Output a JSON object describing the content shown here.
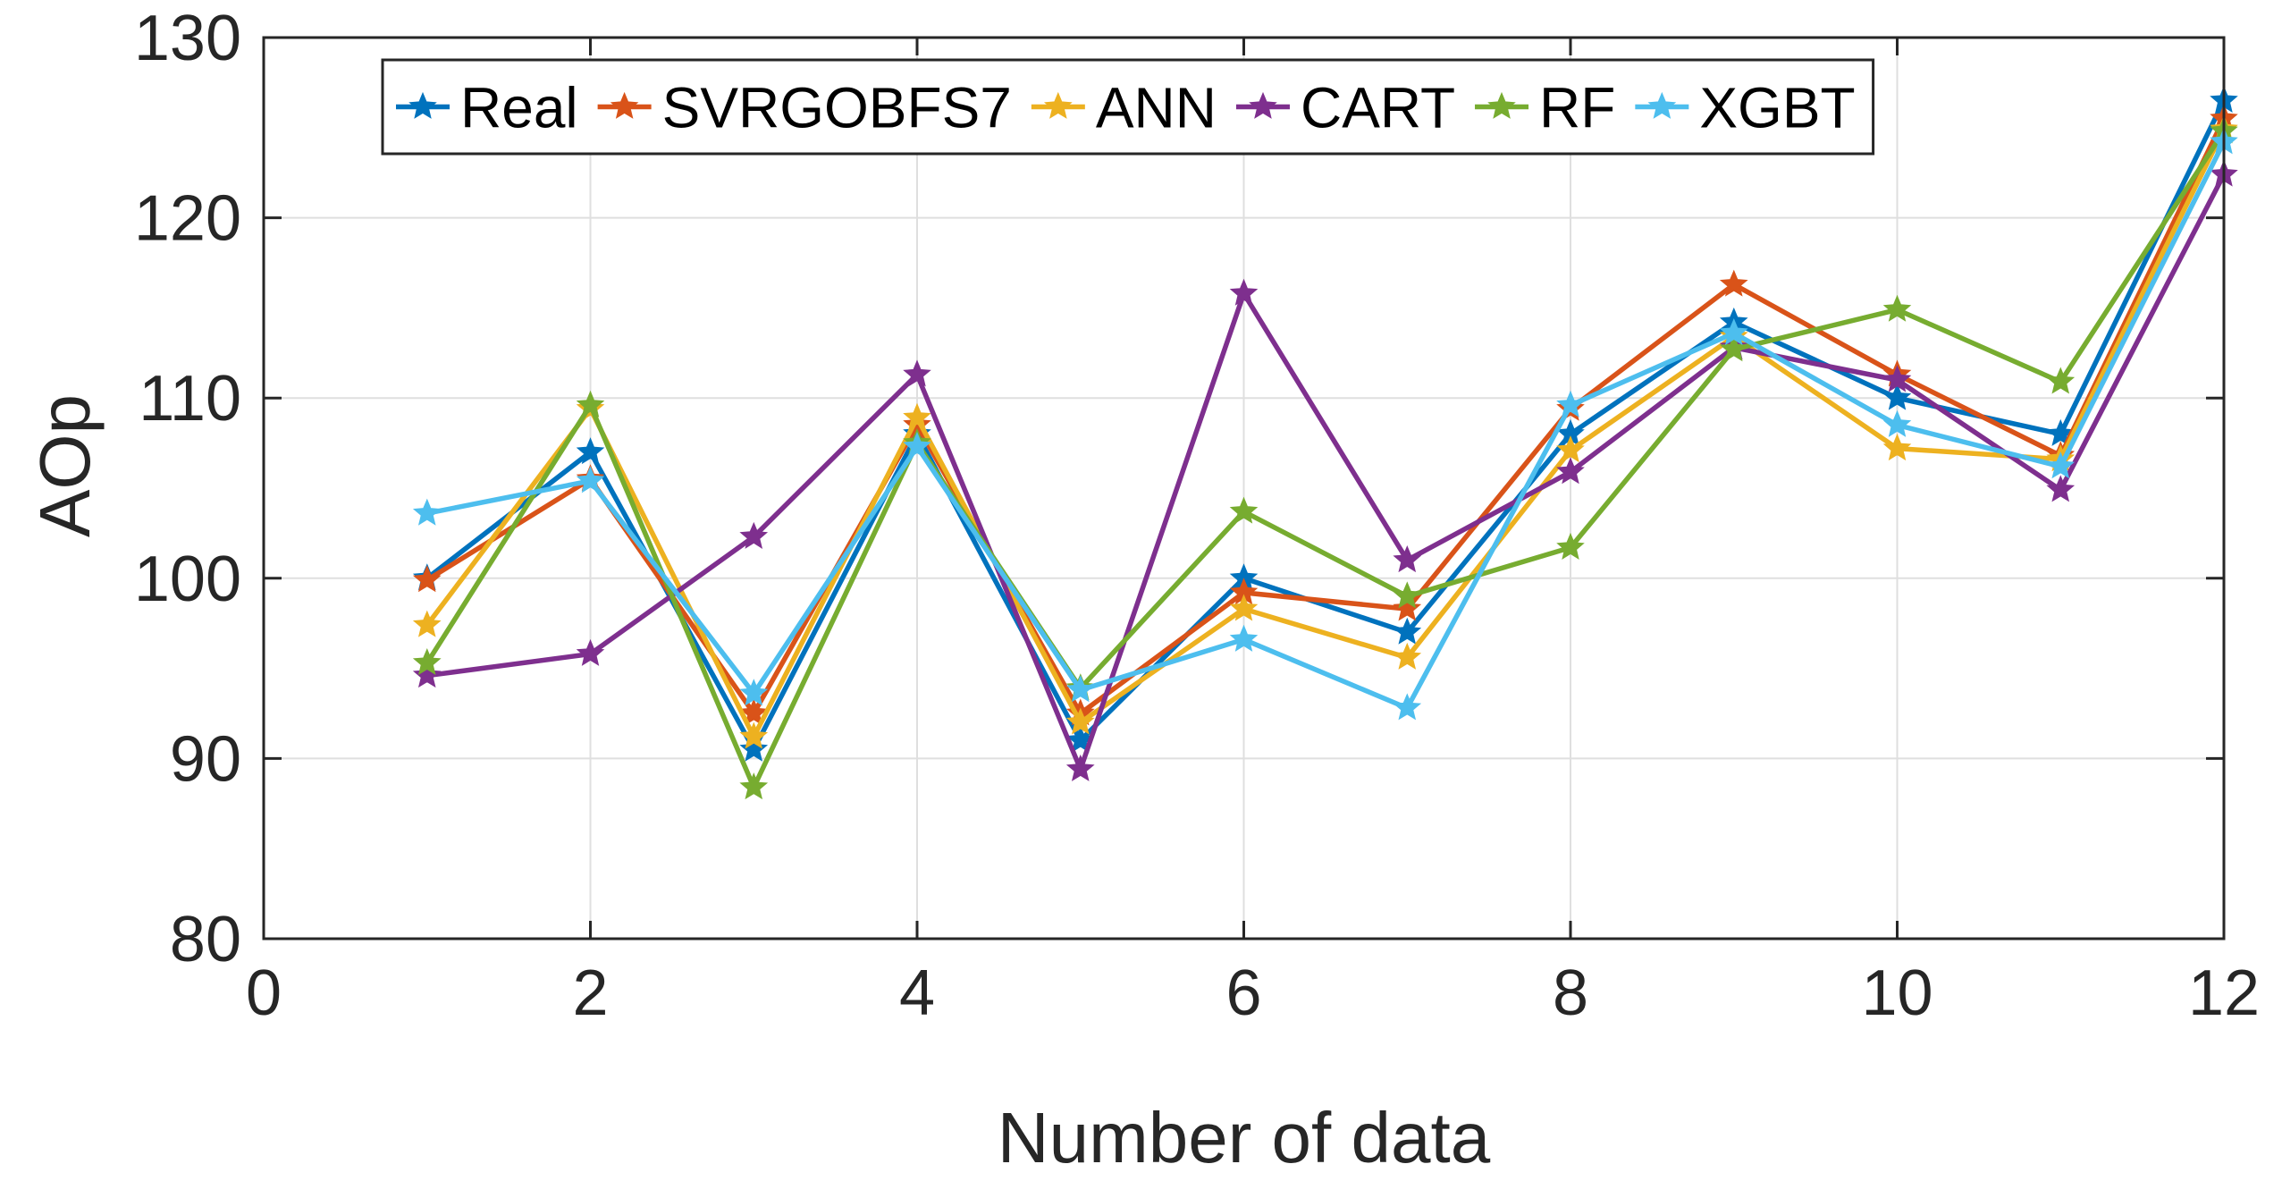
{
  "chart_data": {
    "type": "line",
    "title": "",
    "xlabel": "Number of data",
    "ylabel": "AOp",
    "xlim": [
      0,
      12
    ],
    "ylim": [
      80,
      130
    ],
    "xticks": [
      0,
      2,
      4,
      6,
      8,
      10,
      12
    ],
    "yticks": [
      80,
      90,
      100,
      110,
      120,
      130
    ],
    "grid": true,
    "legend_position": "top",
    "x": [
      1,
      2,
      3,
      4,
      5,
      6,
      7,
      8,
      9,
      10,
      11,
      12
    ],
    "series": [
      {
        "name": "Real",
        "color": "#0072BD",
        "values": [
          100.0,
          107.0,
          90.5,
          108.0,
          91.0,
          100.0,
          97.0,
          108.0,
          114.2,
          110.0,
          108.0,
          126.5
        ]
      },
      {
        "name": "SVRGOBFS7",
        "color": "#D95319",
        "values": [
          99.9,
          105.5,
          92.5,
          108.5,
          92.5,
          99.2,
          98.3,
          109.4,
          116.3,
          111.3,
          106.8,
          125.5
        ]
      },
      {
        "name": "ANN",
        "color": "#EDB120",
        "values": [
          97.4,
          109.4,
          91.2,
          108.9,
          92.0,
          98.3,
          95.6,
          107.1,
          113.4,
          107.2,
          106.6,
          124.9
        ]
      },
      {
        "name": "CART",
        "color": "#7E2F8E",
        "values": [
          94.6,
          95.8,
          102.3,
          111.3,
          89.4,
          115.8,
          101.0,
          105.9,
          112.8,
          111.0,
          104.9,
          122.4
        ]
      },
      {
        "name": "RF",
        "color": "#77AC30",
        "values": [
          95.3,
          109.6,
          88.4,
          107.5,
          93.9,
          103.7,
          99.0,
          101.7,
          112.7,
          114.9,
          110.9,
          124.8
        ]
      },
      {
        "name": "XGBT",
        "color": "#4DBEEE",
        "values": [
          103.6,
          105.4,
          93.6,
          107.3,
          93.8,
          96.6,
          92.8,
          109.6,
          113.6,
          108.5,
          106.2,
          124.2
        ]
      }
    ]
  }
}
